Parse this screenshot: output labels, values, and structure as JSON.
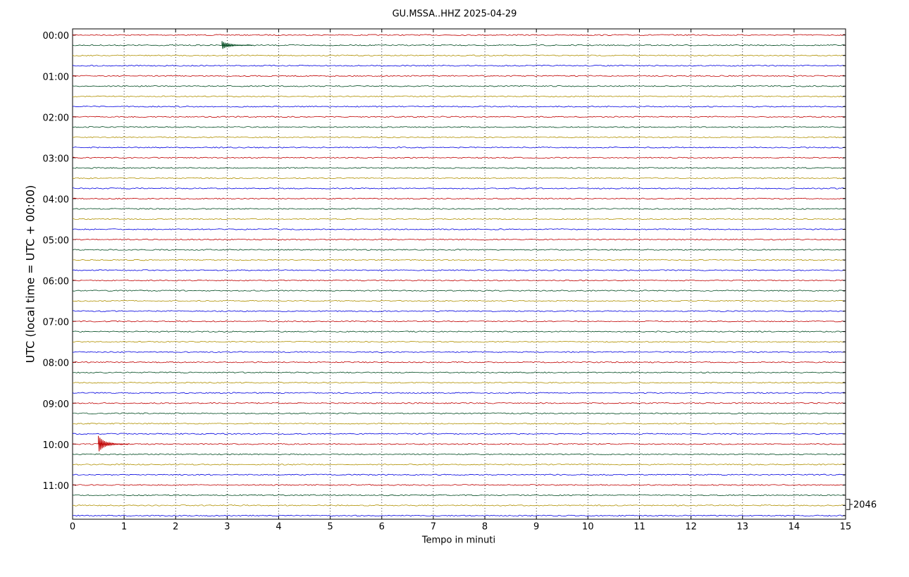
{
  "chart_data": {
    "type": "helicorder",
    "title": "GU.MSSA..HHZ 2025-04-29",
    "x_label": "Tempo in minuti",
    "y_label": "UTC (local time = UTC + 00:00)",
    "xlim": [
      0,
      15
    ],
    "xticks": [
      0,
      1,
      2,
      3,
      4,
      5,
      6,
      7,
      8,
      9,
      10,
      11,
      12,
      13,
      14,
      15
    ],
    "ylim": [
      -0.6,
      47.35
    ],
    "y_inverted": true,
    "yticks": [
      {
        "value": 0,
        "label": "00:00"
      },
      {
        "value": 4,
        "label": "01:00"
      },
      {
        "value": 8,
        "label": "02:00"
      },
      {
        "value": 12,
        "label": "03:00"
      },
      {
        "value": 16,
        "label": "04:00"
      },
      {
        "value": 20,
        "label": "05:00"
      },
      {
        "value": 24,
        "label": "06:00"
      },
      {
        "value": 28,
        "label": "07:00"
      },
      {
        "value": 32,
        "label": "08:00"
      },
      {
        "value": 36,
        "label": "09:00"
      },
      {
        "value": 40,
        "label": "10:00"
      },
      {
        "value": 44,
        "label": "11:00"
      }
    ],
    "trace_count": 48,
    "colors": [
      "#c00000",
      "#004a20",
      "#b09000",
      "#0000e0"
    ],
    "grid": true,
    "events": [
      {
        "row": 1,
        "x": 2.9,
        "amplitude": 0.4
      },
      {
        "row": 40,
        "x": 0.5,
        "amplitude": 0.8
      }
    ],
    "scale": 2046
  }
}
